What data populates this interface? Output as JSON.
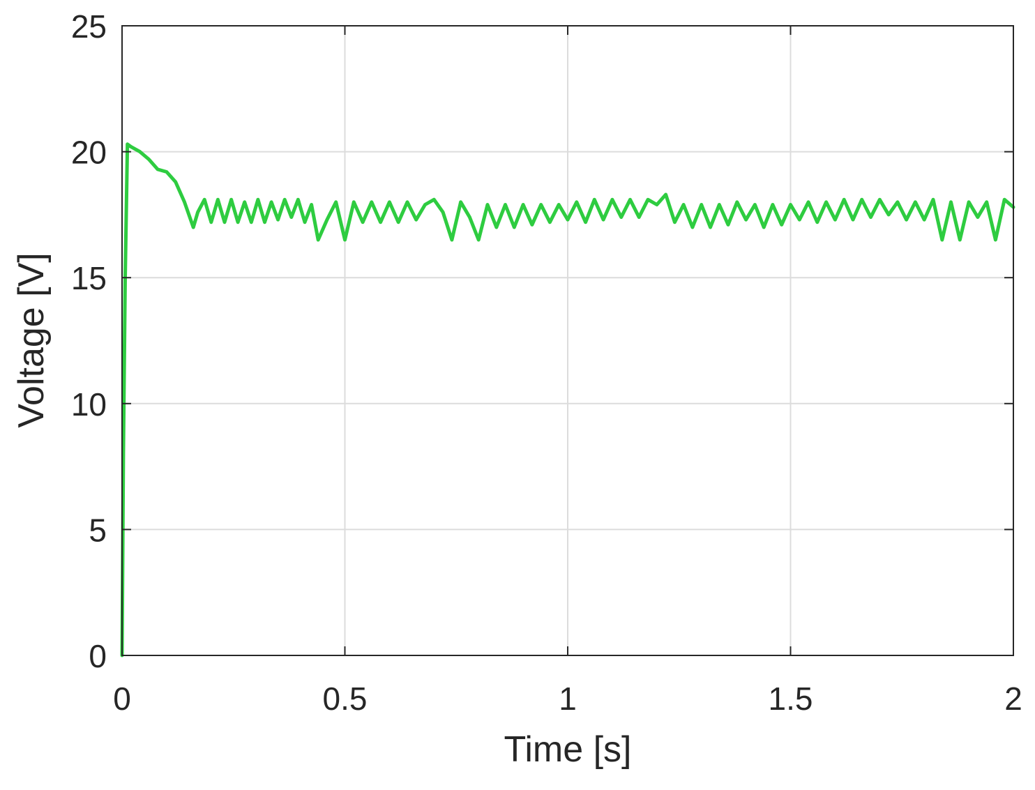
{
  "chart_data": {
    "type": "line",
    "title": "",
    "xlabel": "Time [s]",
    "ylabel": "Voltage [V]",
    "xlim": [
      0,
      2
    ],
    "ylim": [
      0,
      25
    ],
    "x_ticks": [
      0,
      0.5,
      1,
      1.5,
      2
    ],
    "x_tick_labels": [
      "0",
      "0.5",
      "1",
      "1.5",
      "2"
    ],
    "y_ticks": [
      0,
      5,
      10,
      15,
      20,
      25
    ],
    "y_tick_labels": [
      "0",
      "5",
      "10",
      "15",
      "20",
      "25"
    ],
    "grid": true,
    "legend": "none",
    "series": [
      {
        "color": "#2ecc40",
        "x": [
          0,
          0.003,
          0.007,
          0.012,
          0.02,
          0.04,
          0.06,
          0.08,
          0.1,
          0.12,
          0.14,
          0.16,
          0.17,
          0.185,
          0.2,
          0.215,
          0.23,
          0.245,
          0.26,
          0.275,
          0.29,
          0.305,
          0.32,
          0.335,
          0.35,
          0.365,
          0.38,
          0.395,
          0.41,
          0.425,
          0.44,
          0.46,
          0.48,
          0.5,
          0.52,
          0.54,
          0.56,
          0.58,
          0.6,
          0.62,
          0.64,
          0.66,
          0.68,
          0.7,
          0.72,
          0.74,
          0.76,
          0.78,
          0.8,
          0.82,
          0.84,
          0.86,
          0.88,
          0.9,
          0.92,
          0.94,
          0.96,
          0.98,
          1.0,
          1.02,
          1.04,
          1.06,
          1.08,
          1.1,
          1.12,
          1.14,
          1.16,
          1.18,
          1.2,
          1.22,
          1.24,
          1.26,
          1.28,
          1.3,
          1.32,
          1.34,
          1.36,
          1.38,
          1.4,
          1.42,
          1.44,
          1.46,
          1.48,
          1.5,
          1.52,
          1.54,
          1.56,
          1.58,
          1.6,
          1.62,
          1.64,
          1.66,
          1.68,
          1.7,
          1.72,
          1.74,
          1.76,
          1.78,
          1.8,
          1.82,
          1.84,
          1.86,
          1.88,
          1.9,
          1.92,
          1.94,
          1.96,
          1.98,
          2.0
        ],
        "y": [
          0,
          8,
          15,
          20.3,
          20.2,
          20.0,
          19.7,
          19.3,
          19.2,
          18.8,
          18.0,
          17.0,
          17.6,
          18.1,
          17.2,
          18.1,
          17.2,
          18.1,
          17.2,
          18.0,
          17.2,
          18.1,
          17.2,
          18.0,
          17.3,
          18.1,
          17.4,
          18.1,
          17.2,
          17.9,
          16.5,
          17.3,
          18.0,
          16.5,
          18.0,
          17.2,
          18.0,
          17.2,
          18.0,
          17.2,
          18.0,
          17.3,
          17.9,
          18.1,
          17.6,
          16.5,
          18.0,
          17.4,
          16.5,
          17.9,
          17.0,
          17.9,
          17.0,
          17.9,
          17.1,
          17.9,
          17.2,
          17.9,
          17.3,
          18.0,
          17.2,
          18.1,
          17.3,
          18.1,
          17.4,
          18.1,
          17.4,
          18.1,
          17.9,
          18.3,
          17.2,
          17.9,
          17.0,
          17.9,
          17.0,
          17.9,
          17.1,
          18.0,
          17.3,
          17.9,
          17.0,
          17.9,
          17.1,
          17.9,
          17.3,
          18.0,
          17.2,
          18.0,
          17.3,
          18.1,
          17.3,
          18.1,
          17.4,
          18.1,
          17.5,
          18.0,
          17.3,
          18.0,
          17.3,
          18.1,
          16.5,
          18.0,
          16.5,
          18.0,
          17.4,
          18.0,
          16.5,
          18.1,
          17.8
        ]
      }
    ]
  }
}
